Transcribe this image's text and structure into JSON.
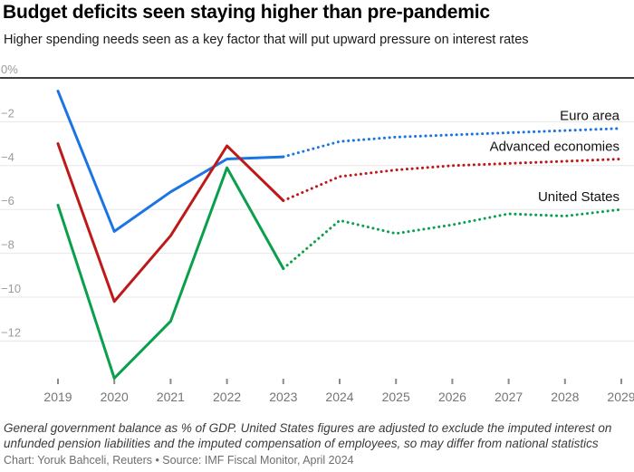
{
  "header": {
    "title": "Budget deficits seen staying higher than pre-pandemic",
    "subtitle": "Higher spending needs seen as a key factor that will put upward pressure on interest rates"
  },
  "footer": {
    "note": "General government balance as % of GDP. United States figures are adjusted to exclude the imputed interest on unfunded pension liabilities and the imputed compensation of employees, so may differ from national statistics",
    "credit": "Chart: Yoruk Bahceli, Reuters • Source: IMF Fiscal Monitor, April 2024"
  },
  "chart_data": {
    "type": "line",
    "title": "Budget deficits seen staying higher than pre-pandemic",
    "xlabel": "",
    "ylabel": "General government balance as % of GDP",
    "x": [
      2019,
      2020,
      2021,
      2022,
      2023,
      2024,
      2025,
      2026,
      2027,
      2028,
      2029
    ],
    "x_tick_labels": [
      "2019",
      "2020",
      "2021",
      "2022",
      "2023",
      "2024",
      "2025",
      "2026",
      "2027",
      "2028",
      "2029"
    ],
    "yticks": [
      {
        "label": "0%",
        "value": 0
      },
      {
        "label": "−2",
        "value": -2
      },
      {
        "label": "−4",
        "value": -4
      },
      {
        "label": "−6",
        "value": -6
      },
      {
        "label": "−8",
        "value": -8
      },
      {
        "label": "−10",
        "value": -10
      },
      {
        "label": "−12",
        "value": -12
      }
    ],
    "ylim": [
      -14.6,
      0
    ],
    "grid": true,
    "legend_position": "end-of-line-labels",
    "forecast_from": 2023,
    "forecast_style": "dotted",
    "series": [
      {
        "id": "euro-area",
        "name": "Euro area",
        "color": "#1b74e3",
        "values": [
          -0.6,
          -7.0,
          -5.2,
          -3.7,
          -3.6,
          -2.9,
          -2.7,
          -2.6,
          -2.5,
          -2.4,
          -2.3
        ]
      },
      {
        "id": "advanced-economies",
        "name": "Advanced economies",
        "color": "#be1919",
        "values": [
          -3.0,
          -10.2,
          -7.2,
          -3.1,
          -5.6,
          -4.5,
          -4.2,
          -4.0,
          -3.9,
          -3.8,
          -3.7
        ]
      },
      {
        "id": "united-states",
        "name": "United States",
        "color": "#0aa04b",
        "values": [
          -5.8,
          -13.7,
          -11.1,
          -4.1,
          -8.7,
          -6.5,
          -7.1,
          -6.7,
          -6.2,
          -6.3,
          -6.0
        ]
      }
    ],
    "colors": {
      "zero_line": "#3f3f3f",
      "gridline": "#e7e7e7",
      "tick": "#8c8c8c",
      "axis_text": "#757575",
      "ytick_text": "#9b9b9b"
    }
  }
}
